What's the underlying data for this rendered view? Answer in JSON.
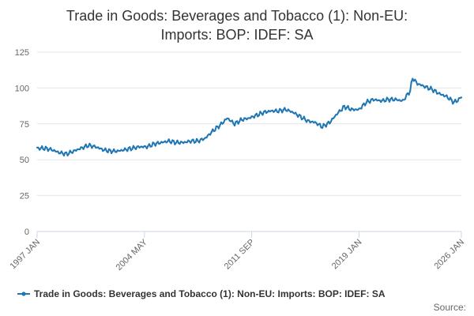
{
  "chart_data": {
    "type": "line",
    "title_lines": [
      "Trade in Goods: Beverages and Tobacco (1): Non-EU:",
      "Imports: BOP: IDEF: SA"
    ],
    "x_tick_labels": [
      "1997 JAN",
      "2004 MAY",
      "2011 SEP",
      "2019 JAN",
      "2026 JAN"
    ],
    "x_tick_index": [
      0,
      88,
      176,
      264,
      348
    ],
    "y_ticks": [
      0,
      25,
      50,
      75,
      100,
      125
    ],
    "ylim": [
      0,
      125
    ],
    "xlim_index": [
      0,
      348
    ],
    "grid": true,
    "series": [
      {
        "name": "Trade in Goods: Beverages and Tobacco (1): Non-EU: Imports: BOP: IDEF: SA",
        "color": "#1f77b4",
        "start": "1997 JAN",
        "frequency": "monthly",
        "anchors": [
          [
            0,
            58
          ],
          [
            6,
            58
          ],
          [
            12,
            57
          ],
          [
            18,
            55
          ],
          [
            24,
            54
          ],
          [
            30,
            56
          ],
          [
            36,
            58
          ],
          [
            42,
            60
          ],
          [
            48,
            59
          ],
          [
            54,
            57
          ],
          [
            60,
            56
          ],
          [
            66,
            56
          ],
          [
            72,
            57
          ],
          [
            78,
            58
          ],
          [
            84,
            59
          ],
          [
            90,
            59
          ],
          [
            96,
            61
          ],
          [
            102,
            62
          ],
          [
            108,
            63
          ],
          [
            114,
            62
          ],
          [
            120,
            62
          ],
          [
            126,
            63
          ],
          [
            132,
            63
          ],
          [
            138,
            65
          ],
          [
            144,
            70
          ],
          [
            150,
            74
          ],
          [
            156,
            79
          ],
          [
            162,
            75
          ],
          [
            168,
            78
          ],
          [
            174,
            79
          ],
          [
            180,
            81
          ],
          [
            186,
            83
          ],
          [
            192,
            84
          ],
          [
            198,
            84
          ],
          [
            204,
            85
          ],
          [
            210,
            83
          ],
          [
            216,
            80
          ],
          [
            222,
            77
          ],
          [
            228,
            76
          ],
          [
            234,
            73
          ],
          [
            240,
            76
          ],
          [
            246,
            82
          ],
          [
            252,
            87
          ],
          [
            258,
            85
          ],
          [
            264,
            85
          ],
          [
            270,
            90
          ],
          [
            276,
            92
          ],
          [
            282,
            91
          ],
          [
            288,
            92
          ],
          [
            294,
            92
          ],
          [
            300,
            91
          ],
          [
            306,
            98
          ],
          [
            308,
            107
          ],
          [
            312,
            103
          ],
          [
            318,
            101
          ],
          [
            324,
            99
          ],
          [
            330,
            96
          ],
          [
            336,
            94
          ],
          [
            342,
            90
          ],
          [
            346,
            92
          ],
          [
            348,
            94
          ]
        ],
        "noise_amplitude": 1.6
      }
    ],
    "legend_position": "bottom-center",
    "source_label": "Source:"
  }
}
